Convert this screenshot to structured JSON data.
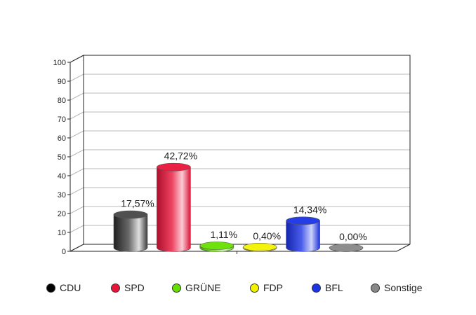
{
  "chart_data": {
    "type": "bar",
    "title": "",
    "xlabel": "",
    "ylabel": "",
    "ylim": [
      0,
      100
    ],
    "yticks": [
      0,
      10,
      20,
      30,
      40,
      50,
      60,
      70,
      80,
      90,
      100
    ],
    "grid": true,
    "legend_position": "bottom",
    "categories": [
      "CDU",
      "SPD",
      "GRÜNE",
      "FDP",
      "BFL",
      "Sonstige"
    ],
    "values": [
      17.57,
      42.72,
      1.11,
      0.4,
      14.34,
      0.0
    ],
    "data_labels": [
      "17,57%",
      "42,72%",
      "1,11%",
      "0,40%",
      "14,34%",
      "0,00%"
    ],
    "colors": [
      "#000000",
      "#e8143a",
      "#66e000",
      "#f2f200",
      "#1a33e6",
      "#888888"
    ]
  }
}
